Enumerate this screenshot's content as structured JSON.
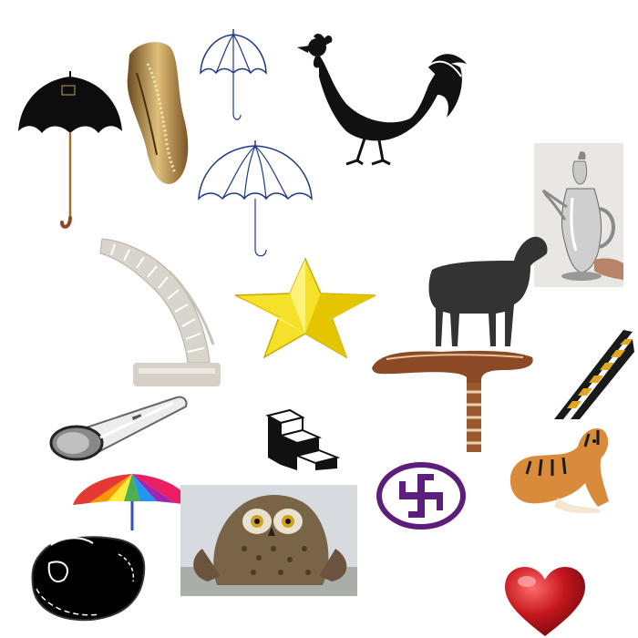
{
  "canvas": {
    "background": "#ffffff"
  },
  "items": [
    {
      "name": "black-umbrella",
      "icon": "black-umbrella-icon",
      "handle_color": "#8a4a2a",
      "label": ""
    },
    {
      "name": "golden-mask",
      "icon": "carved-gold-mask-icon",
      "color": "#b89050"
    },
    {
      "name": "outline-umbrella-small",
      "icon": "umbrella-outline-icon",
      "color": "#1f3a8a"
    },
    {
      "name": "outline-umbrella-large",
      "icon": "umbrella-outline-icon",
      "color": "#1f3a8a"
    },
    {
      "name": "rooster",
      "icon": "rooster-icon",
      "color": "#111111"
    },
    {
      "name": "silver-jug",
      "icon": "silver-pitcher-icon",
      "color": "#b5b5b5"
    },
    {
      "name": "staircase",
      "icon": "curved-staircase-icon",
      "color": "#d8d2c8"
    },
    {
      "name": "yellow-star",
      "icon": "star-icon",
      "color": "#f5e02a"
    },
    {
      "name": "black-sheep",
      "icon": "sheep-silhouette-icon",
      "color": "#333333"
    },
    {
      "name": "walking-cane",
      "icon": "wooden-cane-icon",
      "color": "#8b4a25"
    },
    {
      "name": "ladder",
      "icon": "ladder-icon",
      "color": "#e0a820"
    },
    {
      "name": "flashlight",
      "icon": "flashlight-icon",
      "color": "#e6e6e6"
    },
    {
      "name": "steps-icon",
      "icon": "steps-icon",
      "color": "#111111"
    },
    {
      "name": "swastika-symbol",
      "icon": "swastika-symbol-icon",
      "color": "#5b1e7a"
    },
    {
      "name": "tiger",
      "icon": "tiger-icon",
      "color": "#d98a3a"
    },
    {
      "name": "rainbow-umbrella",
      "icon": "rainbow-umbrella-icon",
      "colors": [
        "#e53935",
        "#ff9800",
        "#ffeb3b",
        "#4caf50",
        "#2196f3",
        "#9c27b0",
        "#e91e63"
      ]
    },
    {
      "name": "owl",
      "icon": "owl-photo-icon",
      "color": "#7a6448"
    },
    {
      "name": "black-pot",
      "icon": "black-pot-icon",
      "color": "#000000"
    },
    {
      "name": "red-heart",
      "icon": "heart-icon",
      "color": "#c4161c"
    }
  ]
}
